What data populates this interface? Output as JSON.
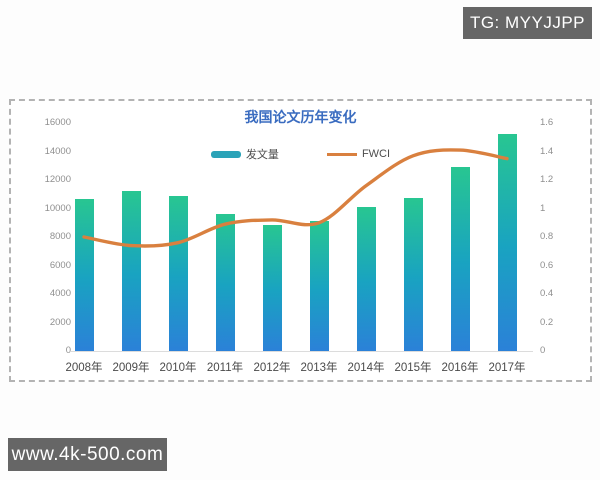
{
  "watermarks": {
    "top_right": "TG: MYYJJPP",
    "bottom_left": "www.4k-500.com"
  },
  "chart": {
    "title": "我国论文历年变化",
    "legend": [
      {
        "label": "发文量",
        "color": "#2ba3b8"
      },
      {
        "label": "FWCI",
        "color": "#d9803f"
      }
    ]
  },
  "chart_data": {
    "type": "bar",
    "subtype": "combo bar+line, dual axis",
    "title": "我国论文历年变化",
    "categories": [
      "2008年",
      "2009年",
      "2010年",
      "2011年",
      "2012年",
      "2013年",
      "2014年",
      "2015年",
      "2016年",
      "2017年"
    ],
    "series": [
      {
        "name": "发文量",
        "type": "bar",
        "axis": "left",
        "values": [
          10650,
          11250,
          10850,
          9600,
          8850,
          9150,
          10100,
          10750,
          12900,
          15200
        ]
      },
      {
        "name": "FWCI",
        "type": "line",
        "axis": "right",
        "values": [
          0.8,
          0.74,
          0.76,
          0.89,
          0.92,
          0.9,
          1.16,
          1.37,
          1.41,
          1.35
        ]
      }
    ],
    "left_axis": {
      "ticks": [
        0,
        2000,
        4000,
        6000,
        8000,
        10000,
        12000,
        14000,
        16000
      ],
      "range": [
        0,
        16000
      ]
    },
    "right_axis": {
      "ticks": [
        0,
        0.2,
        0.4,
        0.6,
        0.8,
        1,
        1.2,
        1.4,
        1.6
      ],
      "range": [
        0,
        1.6
      ]
    },
    "grid": false,
    "legend_position": "top-center"
  },
  "colors": {
    "bar_gradient_top": "#28c691",
    "bar_gradient_mid": "#19a3c1",
    "bar_gradient_bottom": "#2b81d8",
    "line": "#d9803f",
    "title": "#3a6cc0",
    "y_tick_text": "#8f8f8f",
    "x_tick_text": "#4a4a4a",
    "badge_bg": "#666666",
    "panel_border": "#b3b3b3"
  }
}
